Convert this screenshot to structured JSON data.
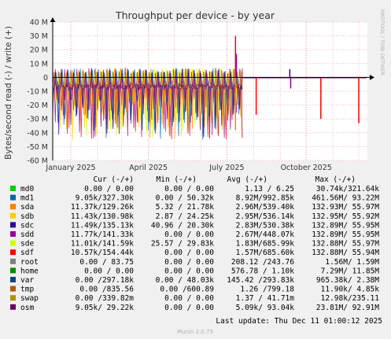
{
  "chart_data": {
    "type": "line",
    "title": "Throughput per device - by year",
    "ylabel": "Bytes/second read (-) / write (+)",
    "side_label": "RRDTOOL / TOBI OETIKER",
    "ylim": [
      -60000000,
      40000000
    ],
    "y_ticks": [
      {
        "v": 40000000,
        "label": "40 M"
      },
      {
        "v": 30000000,
        "label": "30 M"
      },
      {
        "v": 20000000,
        "label": "20 M"
      },
      {
        "v": 10000000,
        "label": "10 M"
      },
      {
        "v": 0,
        "label": "0"
      },
      {
        "v": -10000000,
        "label": "-10 M"
      },
      {
        "v": -20000000,
        "label": "-20 M"
      },
      {
        "v": -30000000,
        "label": "-30 M"
      },
      {
        "v": -40000000,
        "label": "-40 M"
      },
      {
        "v": -50000000,
        "label": "-50 M"
      },
      {
        "v": -60000000,
        "label": "-60 M"
      }
    ],
    "x_range": [
      "2024-12-11",
      "2025-12-11"
    ],
    "x_ticks": [
      {
        "date": "2025-01-01",
        "label": "January 2025"
      },
      {
        "date": "2025-04-01",
        "label": "April 2025"
      },
      {
        "date": "2025-07-01",
        "label": "July 2025"
      },
      {
        "date": "2025-10-01",
        "label": "October 2025"
      }
    ],
    "grid": true,
    "columns": [
      "Cur (-/+)",
      "Min (-/+)",
      "Avg (-/+)",
      "Max (-/+)"
    ],
    "legend": [
      {
        "name": "md0",
        "color": "#00cc00",
        "cur": "0.00 /  0.00",
        "min": "0.00 /  0.00",
        "avg": "1.13 /  6.25",
        "max": "30.74k/321.64k"
      },
      {
        "name": "md1",
        "color": "#0066b3",
        "cur": "9.05k/327.30k",
        "min": "0.00 / 50.32k",
        "avg": "8.92M/992.85k",
        "max": "461.56M/ 93.22M"
      },
      {
        "name": "sda",
        "color": "#ff8000",
        "cur": "11.37k/129.26k",
        "min": "5.32 / 21.78k",
        "avg": "2.96M/539.40k",
        "max": "132.93M/ 55.97M"
      },
      {
        "name": "sdb",
        "color": "#ffcc00",
        "cur": "11.43k/130.98k",
        "min": "2.87 / 24.25k",
        "avg": "2.95M/536.14k",
        "max": "132.95M/ 55.92M"
      },
      {
        "name": "sdc",
        "color": "#330099",
        "cur": "11.49k/135.13k",
        "min": "40.96 / 20.30k",
        "avg": "2.83M/530.38k",
        "max": "132.89M/ 55.95M"
      },
      {
        "name": "sdd",
        "color": "#990099",
        "cur": "11.77k/141.33k",
        "min": "0.00 /  0.00",
        "avg": "2.67M/448.07k",
        "max": "132.89M/ 55.95M"
      },
      {
        "name": "sde",
        "color": "#ccff00",
        "cur": "11.01k/141.59k",
        "min": "25.57 / 29.83k",
        "avg": "1.83M/685.99k",
        "max": "132.88M/ 55.97M"
      },
      {
        "name": "sdf",
        "color": "#ff0000",
        "cur": "10.57k/154.44k",
        "min": "0.00 /  0.00",
        "avg": "1.57M/685.60k",
        "max": "132.88M/ 55.94M"
      },
      {
        "name": "root",
        "color": "#808080",
        "cur": "0.00 / 83.75",
        "min": "0.00 /  0.00",
        "avg": "208.12 /243.76",
        "max": "1.56M/  1.59M"
      },
      {
        "name": "home",
        "color": "#008f00",
        "cur": "0.00 /  0.00",
        "min": "0.00 /  0.00",
        "avg": "576.78 /  1.10k",
        "max": "7.29M/ 11.85M"
      },
      {
        "name": "var",
        "color": "#00487d",
        "cur": "0.00 /297.18k",
        "min": "0.00 / 48.03k",
        "avg": "145.42 /293.83k",
        "max": "965.38k/  2.38M"
      },
      {
        "name": "tmp",
        "color": "#b35a00",
        "cur": "0.00 /835.56",
        "min": "0.00 /600.89",
        "avg": "1.26 /799.18",
        "max": "11.90k/  4.85k"
      },
      {
        "name": "swap",
        "color": "#b38f00",
        "cur": "0.00 /339.82m",
        "min": "0.00 /  0.00",
        "avg": "1.37 / 41.71m",
        "max": "12.98k/235.11"
      },
      {
        "name": "osm",
        "color": "#6b006b",
        "cur": "9.05k/ 29.22k",
        "min": "0.00 /  0.00",
        "avg": "5.09k/ 93.04k",
        "max": "23.81M/ 92.91M"
      }
    ],
    "last_update": "Last update: Thu Dec 11 01:00:12 2025",
    "footer": "Munin 2.0.73"
  }
}
